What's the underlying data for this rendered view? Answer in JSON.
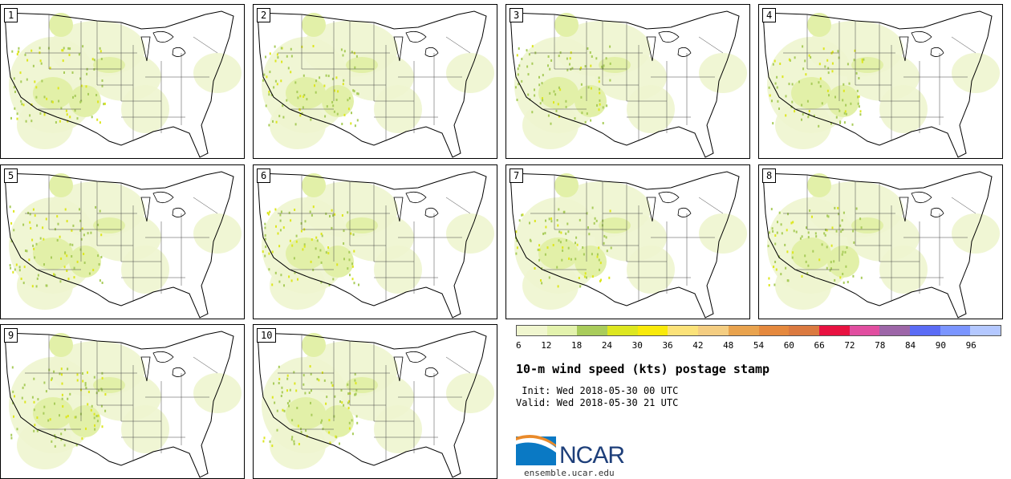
{
  "panels": [
    {
      "label": "1"
    },
    {
      "label": "2"
    },
    {
      "label": "3"
    },
    {
      "label": "4"
    },
    {
      "label": "5"
    },
    {
      "label": "6"
    },
    {
      "label": "7"
    },
    {
      "label": "8"
    },
    {
      "label": "9"
    },
    {
      "label": "10"
    }
  ],
  "colorbar": {
    "ticks": [
      "6",
      "12",
      "18",
      "24",
      "30",
      "36",
      "42",
      "48",
      "54",
      "60",
      "66",
      "72",
      "78",
      "84",
      "90",
      "96"
    ],
    "colors": [
      "#f0f6cf",
      "#e3f2ad",
      "#a9cc5b",
      "#dde720",
      "#f9ea0b",
      "#fbe279",
      "#f4cd81",
      "#e9a34e",
      "#e5893e",
      "#db7a40",
      "#e81241",
      "#e14ea0",
      "#9d66a8",
      "#5b6cf5",
      "#7b95ff",
      "#b4c8ff"
    ]
  },
  "title": "10-m wind speed (kts) postage stamp",
  "init_text": " Init: Wed 2018-05-30 00 UTC",
  "valid_text": "Valid: Wed 2018-05-30 21 UTC",
  "logo": {
    "text": "NCAR",
    "colors": {
      "blue": "#0a79c4",
      "navy": "#1e3f7a",
      "orange": "#e98a2a"
    }
  },
  "url": "ensemble.ucar.edu",
  "map_colors": {
    "light": "#eef5cf",
    "mid": "#e2f0a8",
    "green": "#a9cc5b",
    "yellow": "#dde720"
  }
}
